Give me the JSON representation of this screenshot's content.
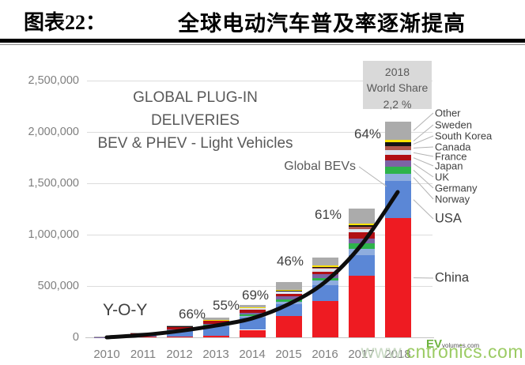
{
  "header": {
    "label": "图表22：",
    "title": "全球电动汽车普及率逐渐提高"
  },
  "chart_data": {
    "type": "bar",
    "stacked": true,
    "title": "GLOBAL PLUG-IN DELIVERIES",
    "subtitle": "BEV & PHEV - Light Vehicles",
    "unit": "vehicles",
    "categories": [
      "2010",
      "2011",
      "2012",
      "2013",
      "2014",
      "2015",
      "2016",
      "2017",
      "2018"
    ],
    "ylim": [
      0,
      2500000
    ],
    "yticks": [
      {
        "value": 2500000,
        "label": "2,500,000"
      },
      {
        "value": 2000000,
        "label": "2,000,000"
      },
      {
        "value": 1500000,
        "label": "1,500,000"
      },
      {
        "value": 1000000,
        "label": "1,000,000"
      },
      {
        "value": 500000,
        "label": "500,000"
      },
      {
        "value": 0,
        "label": "0"
      }
    ],
    "grid": true,
    "legend_position": "right",
    "series": [
      {
        "name": "China",
        "color": "#ee1b22",
        "values": [
          1000,
          5000,
          11000,
          15000,
          73000,
          207000,
          351000,
          600000,
          1160000
        ]
      },
      {
        "name": "USA",
        "color": "#5b87d6",
        "values": [
          2000,
          18000,
          53000,
          96000,
          118000,
          115000,
          159000,
          200000,
          361000
        ]
      },
      {
        "name": "Norway",
        "color": "#8fadde",
        "values": [
          400,
          2000,
          4000,
          8000,
          20000,
          26000,
          45000,
          62000,
          73000
        ]
      },
      {
        "name": "Germany",
        "color": "#2eb34b",
        "values": [
          200,
          2000,
          3000,
          6000,
          13000,
          23000,
          25000,
          55000,
          68000
        ]
      },
      {
        "name": "UK",
        "color": "#7c63a5",
        "values": [
          200,
          1200,
          2500,
          3600,
          15000,
          28000,
          37000,
          47000,
          60000
        ]
      },
      {
        "name": "Japan",
        "color": "#b00f14",
        "values": [
          2400,
          12000,
          29000,
          30000,
          32000,
          25000,
          25000,
          56000,
          53000
        ]
      },
      {
        "name": "France",
        "color": "#dbe4f0",
        "values": [
          200,
          2600,
          5700,
          8800,
          12500,
          22700,
          29500,
          36000,
          46000
        ]
      },
      {
        "name": "Canada",
        "color": "#b0584d",
        "values": [
          200,
          500,
          2000,
          3000,
          5000,
          6900,
          11000,
          19000,
          44000
        ]
      },
      {
        "name": "South Korea",
        "color": "#141414",
        "values": [
          100,
          300,
          500,
          600,
          1200,
          3000,
          5000,
          14000,
          32000
        ]
      },
      {
        "name": "Sweden",
        "color": "#ffe400",
        "values": [
          100,
          200,
          900,
          1500,
          4600,
          8600,
          13400,
          20000,
          29000
        ]
      },
      {
        "name": "Other",
        "color": "#ababab",
        "values": [
          1200,
          3200,
          3400,
          22500,
          21700,
          74800,
          76100,
          146000,
          174000
        ]
      }
    ],
    "yoy_labels": [
      {
        "year": "2012",
        "text": "66%"
      },
      {
        "year": "2013",
        "text": "55%"
      },
      {
        "year": "2014",
        "text": "69%"
      },
      {
        "year": "2015",
        "text": "46%"
      },
      {
        "year": "2016",
        "text": "61%"
      },
      {
        "year": "2017",
        "text": "64%"
      }
    ],
    "yoy_line": {
      "name": "Y-O-Y",
      "color": "#0d0d0d",
      "values_primary_axis_estimate": [
        0,
        23000,
        62000,
        115000,
        185000,
        323000,
        538000,
        900000,
        1415000
      ]
    },
    "annotations": {
      "world_share": [
        "2018",
        "World Share",
        "2,2 %"
      ],
      "global_bevs": "Global BEVs"
    }
  },
  "watermark": {
    "prefix": "www.",
    "domain": "cntronics.com"
  },
  "logo": {
    "ev": "EV",
    "rest": "volumes.com"
  }
}
